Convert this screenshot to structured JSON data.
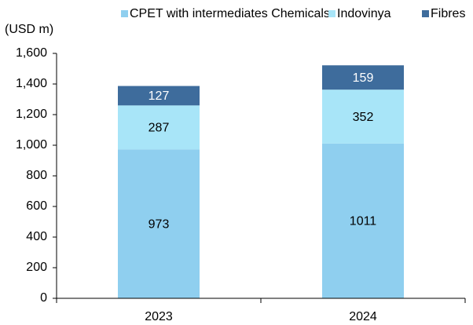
{
  "chart_data": {
    "type": "stacked_bar",
    "y_label": "(USD m)",
    "categories": [
      "2023",
      "2024"
    ],
    "series": [
      {
        "name": "CPET with intermediates Chemicals",
        "color": "#8fcfef",
        "values": [
          973,
          1011
        ]
      },
      {
        "name": "Indovinya",
        "color": "#a8e5f8",
        "values": [
          287,
          352
        ]
      },
      {
        "name": "Fibres",
        "color": "#3e6c9c",
        "values": [
          127,
          159
        ]
      }
    ],
    "ylim": [
      0,
      1600
    ],
    "yticks": [
      0,
      200,
      400,
      600,
      800,
      {
        "value": 1000,
        "label": "1,000"
      },
      {
        "value": 1200,
        "label": "1,200"
      },
      {
        "value": 1400,
        "label": "1,400"
      },
      {
        "value": 1600,
        "label": "1,600"
      }
    ],
    "legend": "top"
  }
}
